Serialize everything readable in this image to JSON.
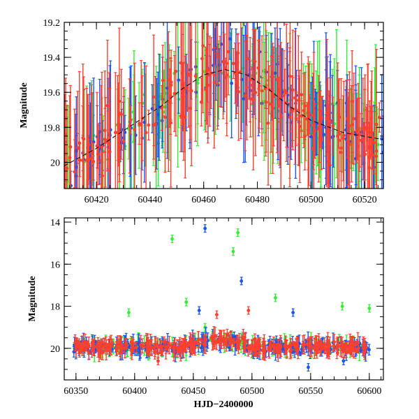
{
  "chart_data": [
    {
      "type": "scatter",
      "title": "",
      "xlabel": "",
      "ylabel": "Magnitude",
      "xlim": [
        60408,
        60527
      ],
      "ylim": [
        20.15,
        19.2
      ],
      "y_inverted": true,
      "x_ticks": [
        60420,
        60440,
        60460,
        60480,
        60500,
        60520
      ],
      "y_ticks": [
        19.2,
        19.4,
        19.6,
        19.8,
        20
      ],
      "x_tick_labels": [
        "60420",
        "60440",
        "60460",
        "60480",
        "60500",
        "60520"
      ],
      "y_tick_labels": [
        "19.2",
        "19.4",
        "19.6",
        "19.8",
        "20"
      ],
      "grid": false,
      "series": [
        {
          "color": "#33ee33"
        },
        {
          "color": "#1a55ee"
        },
        {
          "color": "#ff4030"
        }
      ],
      "model_curve": {
        "color": "#000000",
        "style": "dashed",
        "x": [
          60408,
          60420,
          60432,
          60444,
          60452,
          60460,
          60468,
          60476,
          60484,
          60492,
          60500,
          60512,
          60527
        ],
        "y": [
          20.02,
          19.92,
          19.8,
          19.68,
          19.58,
          19.5,
          19.47,
          19.5,
          19.58,
          19.68,
          19.76,
          19.83,
          19.87
        ]
      }
    },
    {
      "type": "scatter",
      "title": "",
      "xlabel": "HJD−2400000",
      "ylabel": "Magnitude",
      "xlim": [
        60340,
        60612
      ],
      "ylim": [
        21.5,
        13.8
      ],
      "y_inverted": true,
      "x_ticks": [
        60350,
        60400,
        60450,
        60500,
        60550,
        60600
      ],
      "y_ticks": [
        14,
        16,
        18,
        20
      ],
      "x_tick_labels": [
        "60350",
        "60400",
        "60450",
        "60500",
        "60550",
        "60600"
      ],
      "y_tick_labels": [
        "14",
        "16",
        "18",
        "20"
      ],
      "grid": false,
      "series": [
        {
          "color": "#33ee33",
          "outliers": [
            [
              60432,
              14.8
            ],
            [
              60484,
              15.4
            ],
            [
              60488,
              14.5
            ],
            [
              60460,
              19.0
            ],
            [
              60395,
              18.3
            ],
            [
              60520,
              17.6
            ],
            [
              60577,
              18.0
            ],
            [
              60600,
              18.1
            ],
            [
              60444,
              17.8
            ]
          ]
        },
        {
          "color": "#1a55ee",
          "outliers": [
            [
              60460,
              14.3
            ],
            [
              60491,
              16.8
            ],
            [
              60455,
              18.2
            ],
            [
              60535,
              18.3
            ],
            [
              60548,
              20.9
            ],
            [
              60578,
              20.6
            ]
          ]
        },
        {
          "color": "#ff4030",
          "outliers": [
            [
              60497,
              18.2
            ],
            [
              60470,
              18.4
            ],
            [
              60420,
              20.6
            ]
          ]
        }
      ]
    }
  ]
}
